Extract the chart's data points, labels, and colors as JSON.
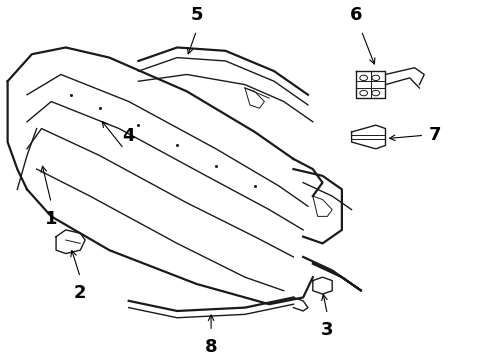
{
  "bg_color": "#ffffff",
  "line_color": "#1a1a1a",
  "label_color": "#000000",
  "label_fontsize": 13,
  "label_fontweight": "bold"
}
